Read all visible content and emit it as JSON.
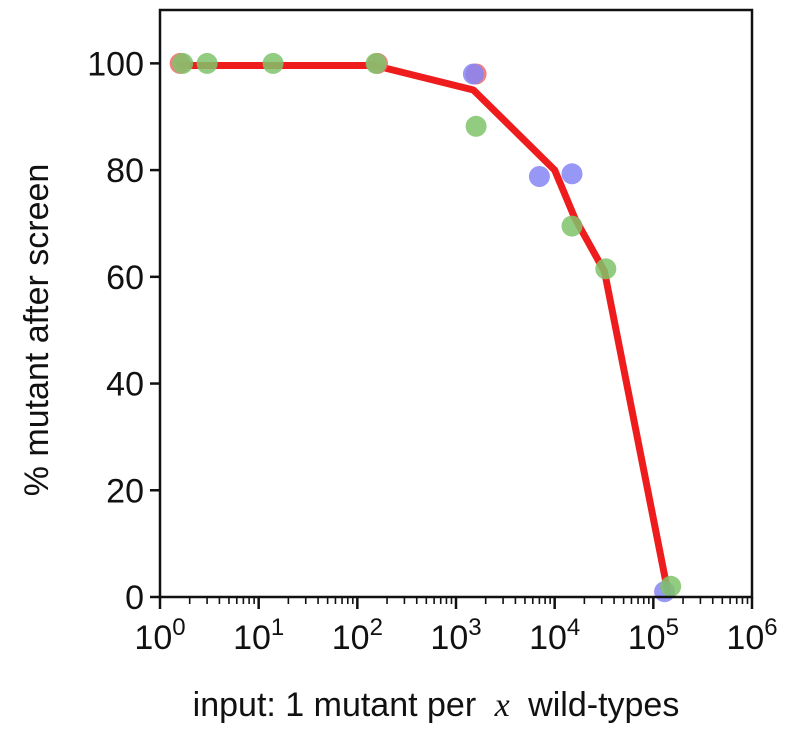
{
  "chart_data": {
    "type": "line",
    "title": "",
    "xlabel_prefix": "input: 1 mutant per",
    "xlabel_var": "x",
    "xlabel_suffix": "wild-types",
    "ylabel": "% mutant after screen",
    "xscale": "log",
    "xlim": [
      1,
      1000000
    ],
    "ylim": [
      0,
      110
    ],
    "x_ticks": [
      {
        "base": "10",
        "exp": "0",
        "value": 1
      },
      {
        "base": "10",
        "exp": "1",
        "value": 10
      },
      {
        "base": "10",
        "exp": "2",
        "value": 100
      },
      {
        "base": "10",
        "exp": "3",
        "value": 1000
      },
      {
        "base": "10",
        "exp": "4",
        "value": 10000
      },
      {
        "base": "10",
        "exp": "5",
        "value": 100000
      },
      {
        "base": "10",
        "exp": "6",
        "value": 1000000
      }
    ],
    "y_ticks": [
      "0",
      "20",
      "40",
      "60",
      "80",
      "100"
    ],
    "grid": false,
    "series": [
      {
        "kind": "line",
        "color": "#ee1c1c",
        "x": [
          1.6,
          150,
          1500,
          10000,
          16000,
          32000,
          140000
        ],
        "y": [
          99.6,
          99.6,
          95,
          80,
          71,
          61,
          1
        ]
      },
      {
        "kind": "scatter",
        "color": "#ef6a6a",
        "x": [
          1.6,
          160,
          1600
        ],
        "y": [
          100,
          100,
          98
        ]
      },
      {
        "kind": "scatter",
        "color": "#8585f5",
        "x": [
          1500,
          7000,
          15000,
          130000
        ],
        "y": [
          98,
          78.8,
          79.3,
          1
        ]
      },
      {
        "kind": "scatter",
        "color": "#7fc36a",
        "x": [
          1.7,
          3,
          14,
          155,
          1600,
          15000,
          33000,
          150000
        ],
        "y": [
          100,
          100,
          100,
          100,
          88.2,
          69.5,
          61.5,
          2
        ]
      }
    ]
  }
}
